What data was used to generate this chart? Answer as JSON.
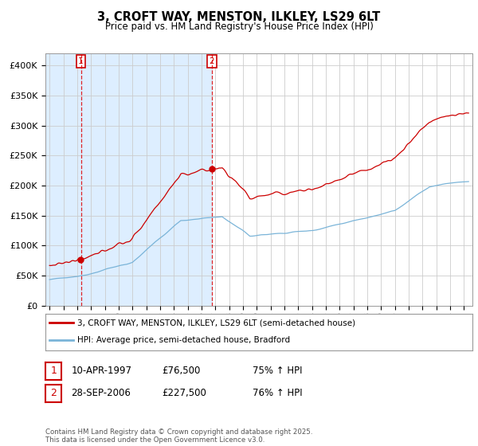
{
  "title1": "3, CROFT WAY, MENSTON, ILKLEY, LS29 6LT",
  "title2": "Price paid vs. HM Land Registry's House Price Index (HPI)",
  "legend_line1": "3, CROFT WAY, MENSTON, ILKLEY, LS29 6LT (semi-detached house)",
  "legend_line2": "HPI: Average price, semi-detached house, Bradford",
  "footer": "Contains HM Land Registry data © Crown copyright and database right 2025.\nThis data is licensed under the Open Government Licence v3.0.",
  "transaction1_date": "10-APR-1997",
  "transaction1_price": "£76,500",
  "transaction1_hpi": "75% ↑ HPI",
  "transaction2_date": "28-SEP-2006",
  "transaction2_price": "£227,500",
  "transaction2_hpi": "76% ↑ HPI",
  "sale1_year": 1997.27,
  "sale1_price": 76500,
  "sale2_year": 2006.74,
  "sale2_price": 227500,
  "vline1_x": 1997.27,
  "vline2_x": 2006.74,
  "hpi_color": "#7ab4d8",
  "property_color": "#cc0000",
  "shade_color": "#ddeeff",
  "plot_bg": "#ffffff",
  "grid_color": "#cccccc",
  "ylim_min": 0,
  "ylim_max": 420000,
  "xmin": 1994.7,
  "xmax": 2025.6
}
